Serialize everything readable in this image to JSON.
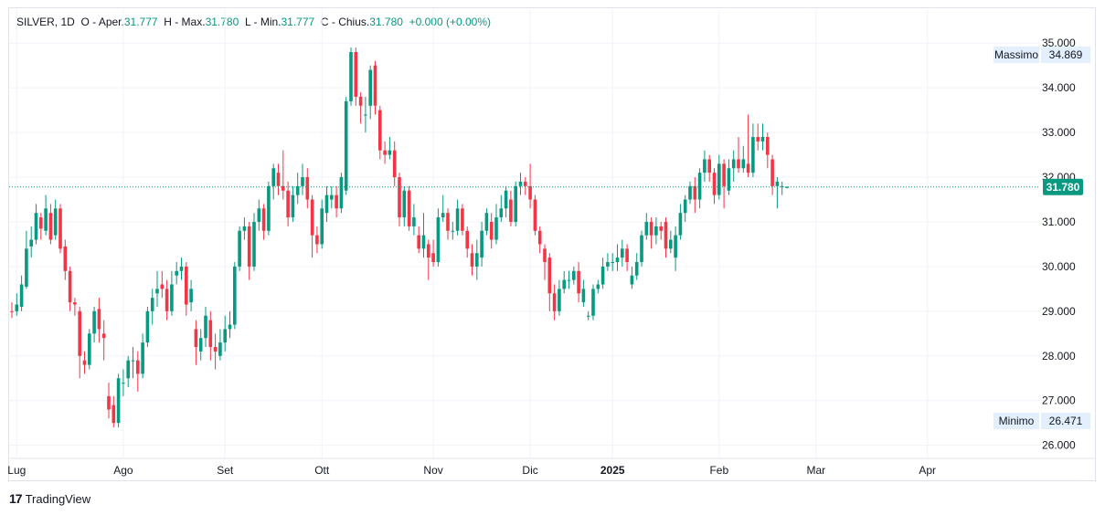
{
  "legend": {
    "symbol": "SILVER, 1D",
    "open_label": "O - Aper.",
    "open": "31.777",
    "high_label": "H - Max.",
    "high": "31.780",
    "low_label": "L - Min.",
    "low": "31.777",
    "close_label": "C - Chius.",
    "close": "31.780",
    "change": "+0.000 (+0.00%)"
  },
  "brand": {
    "logo": "17",
    "name": "TradingView"
  },
  "colors": {
    "up": "#089981",
    "down": "#f23645",
    "grid": "#f0f3fa",
    "price_line": "#089981"
  },
  "chart_data": {
    "type": "candlestick",
    "ylim": [
      25.7,
      35.0
    ],
    "y_ticks": [
      26.0,
      27.0,
      28.0,
      29.0,
      30.0,
      31.0,
      32.0,
      33.0,
      34.0,
      35.0
    ],
    "y_tick_labels": [
      "26.000",
      "27.000",
      "28.000",
      "29.000",
      "30.000",
      "31.000",
      "32.000",
      "33.000",
      "34.000",
      "35.000"
    ],
    "x_ticks": [
      {
        "label": "Lug",
        "bar": 1,
        "bold": false
      },
      {
        "label": "Ago",
        "bar": 23,
        "bold": false
      },
      {
        "label": "Set",
        "bar": 44,
        "bold": false
      },
      {
        "label": "Ott",
        "bar": 64,
        "bold": false
      },
      {
        "label": "Nov",
        "bar": 87,
        "bold": false
      },
      {
        "label": "Dic",
        "bar": 107,
        "bold": false
      },
      {
        "label": "2025",
        "bar": 124,
        "bold": true
      },
      {
        "label": "Feb",
        "bar": 146,
        "bold": false
      },
      {
        "label": "Mar",
        "bar": 166,
        "bold": false
      },
      {
        "label": "Apr",
        "bar": 189,
        "bold": false
      }
    ],
    "last_price": "31.780",
    "last_value": 31.78,
    "max_label": "Massimo",
    "max_value": "34.869",
    "min_label": "Minimo",
    "min_value": "26.471",
    "candles": [
      [
        29.0,
        28.98,
        29.2,
        28.85
      ],
      [
        29.0,
        29.15,
        29.4,
        28.9
      ],
      [
        29.1,
        29.6,
        29.8,
        29.0
      ],
      [
        29.55,
        30.4,
        30.8,
        29.5
      ],
      [
        30.45,
        30.6,
        30.9,
        30.2
      ],
      [
        30.6,
        31.2,
        31.4,
        30.5
      ],
      [
        31.1,
        30.85,
        31.2,
        30.6
      ],
      [
        30.8,
        31.3,
        31.6,
        30.7
      ],
      [
        31.2,
        30.6,
        31.4,
        30.5
      ],
      [
        30.7,
        31.3,
        31.5,
        30.6
      ],
      [
        31.3,
        30.4,
        31.4,
        30.3
      ],
      [
        30.45,
        29.9,
        30.6,
        29.7
      ],
      [
        29.9,
        29.2,
        30.0,
        29.0
      ],
      [
        29.2,
        29.15,
        29.3,
        28.9
      ],
      [
        29.0,
        28.0,
        29.1,
        27.5
      ],
      [
        27.9,
        27.8,
        28.1,
        27.6
      ],
      [
        27.8,
        28.5,
        28.6,
        27.7
      ],
      [
        28.5,
        29.0,
        29.1,
        28.3
      ],
      [
        29.05,
        28.6,
        29.3,
        28.3
      ],
      [
        28.5,
        28.4,
        28.8,
        27.9
      ],
      [
        27.1,
        26.8,
        27.4,
        26.6
      ],
      [
        26.9,
        26.5,
        27.1,
        26.4
      ],
      [
        26.5,
        27.5,
        27.6,
        26.4
      ],
      [
        27.4,
        27.4,
        27.7,
        27.1
      ],
      [
        27.5,
        27.9,
        28.0,
        27.3
      ],
      [
        27.9,
        27.9,
        28.2,
        27.5
      ],
      [
        27.9,
        27.6,
        28.1,
        27.2
      ],
      [
        27.6,
        28.3,
        28.5,
        27.5
      ],
      [
        28.3,
        29.0,
        29.1,
        28.2
      ],
      [
        29.0,
        29.3,
        29.5,
        28.7
      ],
      [
        29.4,
        29.5,
        29.9,
        29.1
      ],
      [
        29.6,
        29.5,
        29.9,
        29.3
      ],
      [
        29.5,
        29.0,
        29.7,
        28.8
      ],
      [
        29.0,
        29.6,
        29.9,
        28.9
      ],
      [
        29.8,
        29.9,
        30.1,
        29.6
      ],
      [
        29.9,
        30.0,
        30.2,
        29.7
      ],
      [
        30.0,
        29.15,
        30.1,
        28.9
      ],
      [
        29.2,
        29.5,
        29.7,
        29.0
      ],
      [
        28.6,
        28.2,
        28.8,
        27.8
      ],
      [
        28.1,
        28.4,
        28.6,
        27.9
      ],
      [
        28.4,
        28.9,
        29.1,
        28.2
      ],
      [
        28.8,
        28.2,
        29.0,
        27.9
      ],
      [
        28.2,
        28.1,
        28.5,
        27.7
      ],
      [
        28.0,
        28.3,
        28.6,
        27.9
      ],
      [
        28.3,
        28.6,
        28.9,
        28.1
      ],
      [
        28.6,
        28.7,
        29.0,
        28.4
      ],
      [
        28.7,
        30.0,
        30.1,
        28.6
      ],
      [
        30.0,
        30.8,
        30.9,
        29.9
      ],
      [
        30.8,
        30.9,
        31.1,
        30.6
      ],
      [
        30.9,
        30.0,
        31.0,
        29.7
      ],
      [
        30.0,
        31.0,
        31.2,
        29.9
      ],
      [
        31.0,
        31.3,
        31.5,
        30.8
      ],
      [
        31.3,
        30.8,
        31.4,
        30.6
      ],
      [
        30.8,
        31.8,
        31.9,
        30.7
      ],
      [
        31.8,
        32.2,
        32.3,
        31.5
      ],
      [
        32.1,
        31.8,
        32.3,
        31.6
      ],
      [
        31.8,
        31.7,
        32.6,
        31.5
      ],
      [
        31.7,
        31.1,
        31.9,
        30.9
      ],
      [
        31.1,
        31.6,
        31.8,
        31.0
      ],
      [
        31.6,
        31.8,
        32.1,
        31.4
      ],
      [
        31.8,
        32.0,
        32.3,
        31.6
      ],
      [
        32.0,
        31.5,
        32.2,
        31.3
      ],
      [
        31.5,
        30.7,
        31.6,
        30.2
      ],
      [
        30.7,
        30.5,
        30.9,
        30.3
      ],
      [
        30.5,
        31.3,
        31.5,
        30.4
      ],
      [
        31.2,
        31.6,
        31.8,
        31.0
      ],
      [
        31.5,
        31.6,
        31.8,
        31.3
      ],
      [
        31.6,
        31.3,
        31.8,
        31.1
      ],
      [
        31.3,
        32.0,
        32.1,
        31.2
      ],
      [
        31.7,
        33.7,
        33.8,
        31.6
      ],
      [
        33.7,
        34.8,
        34.9,
        33.6
      ],
      [
        34.8,
        33.8,
        34.9,
        33.6
      ],
      [
        33.8,
        33.6,
        33.9,
        33.2
      ],
      [
        33.4,
        33.4,
        33.8,
        33.0
      ],
      [
        33.6,
        34.4,
        34.5,
        33.3
      ],
      [
        34.5,
        33.6,
        34.6,
        33.4
      ],
      [
        33.5,
        32.6,
        33.6,
        32.4
      ],
      [
        32.6,
        32.5,
        32.8,
        32.3
      ],
      [
        32.5,
        32.6,
        32.9,
        32.4
      ],
      [
        32.6,
        32.0,
        32.8,
        31.8
      ],
      [
        32.0,
        31.1,
        32.1,
        30.9
      ],
      [
        31.1,
        31.7,
        31.8,
        30.9
      ],
      [
        31.7,
        30.9,
        31.8,
        30.8
      ],
      [
        30.9,
        31.1,
        31.4,
        30.7
      ],
      [
        30.7,
        30.4,
        30.9,
        30.3
      ],
      [
        30.4,
        30.7,
        31.2,
        30.2
      ],
      [
        30.5,
        30.2,
        30.6,
        29.7
      ],
      [
        30.3,
        30.1,
        30.6,
        30.0
      ],
      [
        30.1,
        31.1,
        31.3,
        30.0
      ],
      [
        31.1,
        31.2,
        31.6,
        31.0
      ],
      [
        31.2,
        30.8,
        31.3,
        30.6
      ],
      [
        30.8,
        30.8,
        31.0,
        30.6
      ],
      [
        30.8,
        31.3,
        31.5,
        30.7
      ],
      [
        31.3,
        30.8,
        31.4,
        30.7
      ],
      [
        30.8,
        30.4,
        30.9,
        30.2
      ],
      [
        30.3,
        30.0,
        30.5,
        29.8
      ],
      [
        30.0,
        30.3,
        30.6,
        29.7
      ],
      [
        30.2,
        30.8,
        31.0,
        30.0
      ],
      [
        30.8,
        31.2,
        31.3,
        30.7
      ],
      [
        31.0,
        30.6,
        31.2,
        30.4
      ],
      [
        30.6,
        31.1,
        31.4,
        30.5
      ],
      [
        31.1,
        31.3,
        31.6,
        31.0
      ],
      [
        31.3,
        31.7,
        31.8,
        31.1
      ],
      [
        31.5,
        31.0,
        31.7,
        30.9
      ],
      [
        31.0,
        31.8,
        31.9,
        30.9
      ],
      [
        31.8,
        31.9,
        32.1,
        31.6
      ],
      [
        31.9,
        31.8,
        32.0,
        31.6
      ],
      [
        31.8,
        31.5,
        32.3,
        31.3
      ],
      [
        31.5,
        30.8,
        31.6,
        30.7
      ],
      [
        30.8,
        30.5,
        30.9,
        30.3
      ],
      [
        30.4,
        30.1,
        30.5,
        29.7
      ],
      [
        30.2,
        29.4,
        30.3,
        29.0
      ],
      [
        29.4,
        29.0,
        29.6,
        28.8
      ],
      [
        29.0,
        29.5,
        29.7,
        28.9
      ],
      [
        29.5,
        29.7,
        29.9,
        29.4
      ],
      [
        29.7,
        29.7,
        29.9,
        29.5
      ],
      [
        29.7,
        29.9,
        30.0,
        29.6
      ],
      [
        29.9,
        29.4,
        30.1,
        29.2
      ],
      [
        29.2,
        29.5,
        29.7,
        29.1
      ],
      [
        28.9,
        28.9,
        29.0,
        28.8
      ],
      [
        28.9,
        29.5,
        29.6,
        28.8
      ],
      [
        29.5,
        29.6,
        29.7,
        29.4
      ],
      [
        29.6,
        30.0,
        30.2,
        29.5
      ],
      [
        30.0,
        30.1,
        30.3,
        29.9
      ],
      [
        30.1,
        30.1,
        30.3,
        29.9
      ],
      [
        30.1,
        30.2,
        30.5,
        29.9
      ],
      [
        30.2,
        30.4,
        30.6,
        30.0
      ],
      [
        30.4,
        30.1,
        30.5,
        29.9
      ],
      [
        29.6,
        29.8,
        30.0,
        29.5
      ],
      [
        29.8,
        30.1,
        30.3,
        29.7
      ],
      [
        30.1,
        30.7,
        30.8,
        30.0
      ],
      [
        30.7,
        31.0,
        31.2,
        30.6
      ],
      [
        31.0,
        30.7,
        31.1,
        30.4
      ],
      [
        30.7,
        30.9,
        31.1,
        30.5
      ],
      [
        30.9,
        30.8,
        31.0,
        30.6
      ],
      [
        31.0,
        30.4,
        31.1,
        30.2
      ],
      [
        30.4,
        30.6,
        30.8,
        30.3
      ],
      [
        30.2,
        30.7,
        30.9,
        29.9
      ],
      [
        30.7,
        31.2,
        31.4,
        30.6
      ],
      [
        31.2,
        31.5,
        31.6,
        31.0
      ],
      [
        31.5,
        31.8,
        31.9,
        31.4
      ],
      [
        31.8,
        31.5,
        32.0,
        31.2
      ],
      [
        31.5,
        32.1,
        32.2,
        31.3
      ],
      [
        32.1,
        32.4,
        32.6,
        31.9
      ],
      [
        32.4,
        32.1,
        32.5,
        31.9
      ],
      [
        32.1,
        31.6,
        32.2,
        31.4
      ],
      [
        31.6,
        32.3,
        32.5,
        31.5
      ],
      [
        32.3,
        31.8,
        32.4,
        31.3
      ],
      [
        31.7,
        32.2,
        32.4,
        31.6
      ],
      [
        32.2,
        32.4,
        32.6,
        31.9
      ],
      [
        32.4,
        32.2,
        32.9,
        32.1
      ],
      [
        32.2,
        32.4,
        32.7,
        32.1
      ],
      [
        32.3,
        32.1,
        33.4,
        32.0
      ],
      [
        32.1,
        32.9,
        33.2,
        32.0
      ],
      [
        32.9,
        32.8,
        33.2,
        32.6
      ],
      [
        32.8,
        32.9,
        33.2,
        32.6
      ],
      [
        32.9,
        32.5,
        33.0,
        32.2
      ],
      [
        32.4,
        31.8,
        32.5,
        31.6
      ],
      [
        31.8,
        31.9,
        32.0,
        31.3
      ],
      [
        31.8,
        31.8,
        31.9,
        31.6
      ],
      [
        31.78,
        31.78,
        31.8,
        31.75
      ]
    ]
  }
}
